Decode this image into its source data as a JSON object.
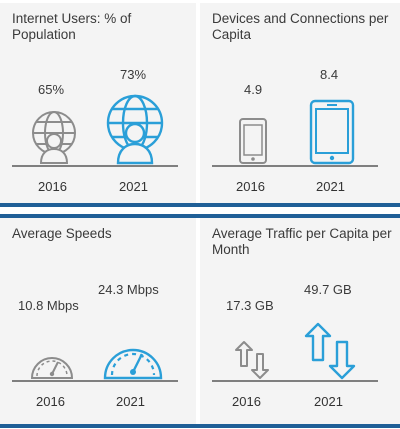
{
  "colors": {
    "old": "#8c8c8c",
    "new": "#2a9fd8",
    "accent": "#1f5f97",
    "background": "#f4f4f4"
  },
  "chart_data": [
    {
      "type": "bar",
      "title": "Internet Users: % of Population",
      "categories": [
        "2016",
        "2021"
      ],
      "values": [
        65,
        73
      ],
      "value_labels": [
        "65%",
        "73%"
      ],
      "icon": "globe-user-icon"
    },
    {
      "type": "bar",
      "title": "Devices and Connections per Capita",
      "categories": [
        "2016",
        "2021"
      ],
      "values": [
        4.9,
        8.4
      ],
      "value_labels": [
        "4.9",
        "8.4"
      ],
      "icon": "smartphone-icon"
    },
    {
      "type": "bar",
      "title": "Average Speeds",
      "categories": [
        "2016",
        "2021"
      ],
      "values": [
        10.8,
        24.3
      ],
      "value_labels": [
        "10.8 Mbps",
        "24.3 Mbps"
      ],
      "icon": "speedometer-icon"
    },
    {
      "type": "bar",
      "title": "Average Traffic per Capita per Month",
      "categories": [
        "2016",
        "2021"
      ],
      "values": [
        17.3,
        49.7
      ],
      "value_labels": [
        "17.3 GB",
        "49.7 GB"
      ],
      "icon": "up-down-arrows-icon"
    }
  ]
}
